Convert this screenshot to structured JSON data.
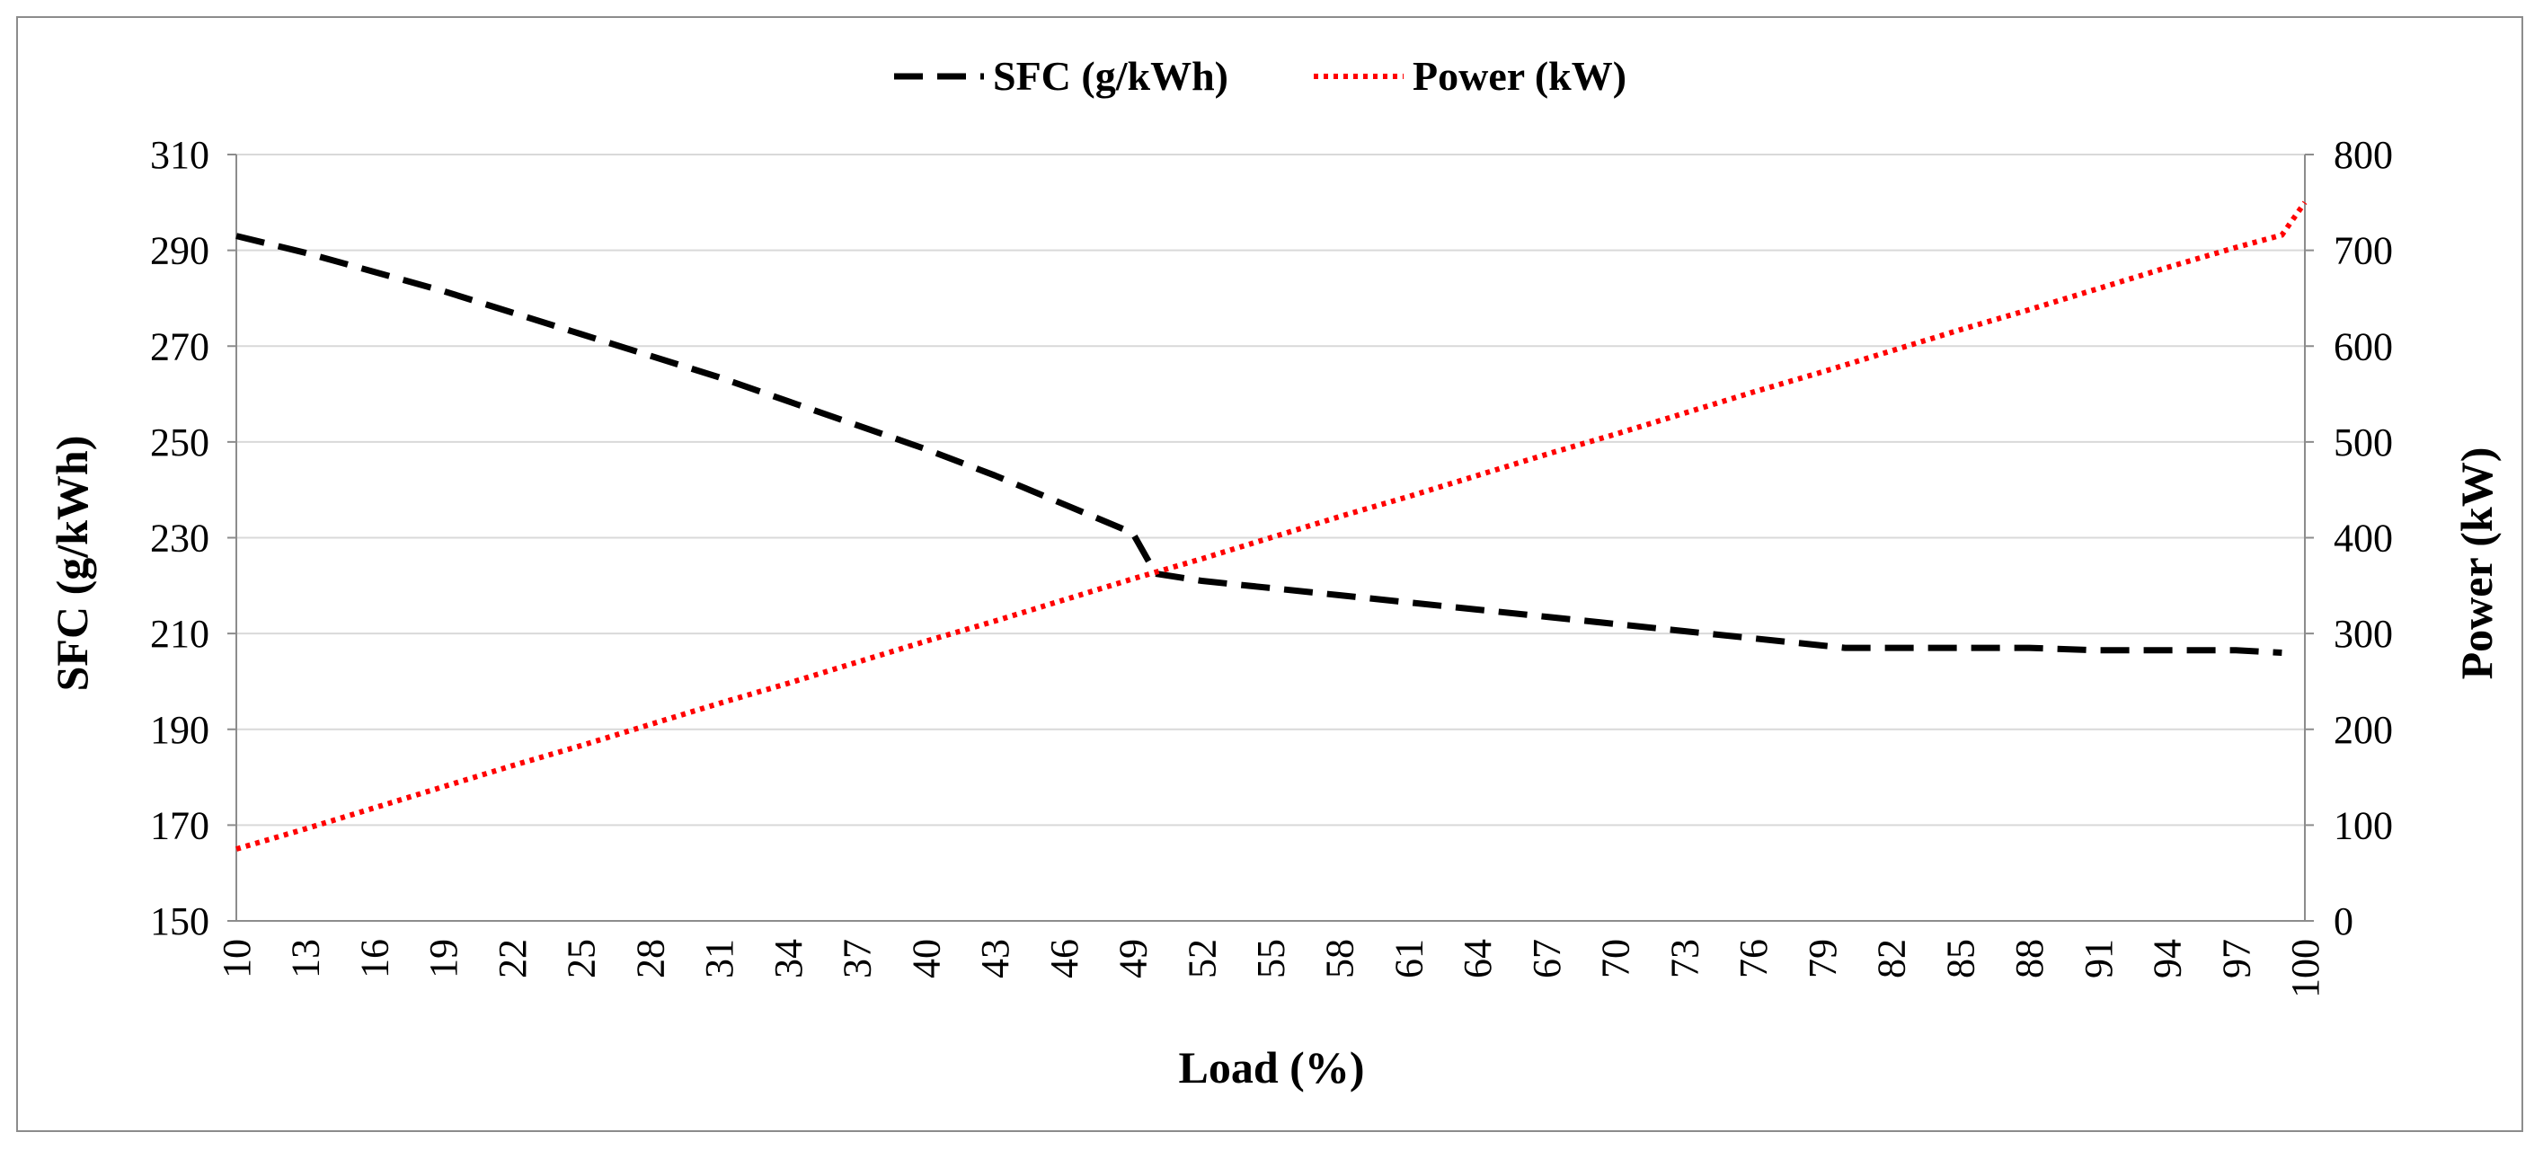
{
  "chart_data": {
    "type": "line",
    "title": "",
    "xlabel": "Load (%)",
    "ylabel": "SFC (g/kWh)",
    "y2label": "Power (kW)",
    "legend_position": "top-center",
    "grid": true,
    "x": [
      10,
      13,
      16,
      19,
      22,
      25,
      28,
      31,
      34,
      37,
      40,
      43,
      46,
      49,
      52,
      55,
      58,
      61,
      64,
      67,
      70,
      73,
      76,
      79,
      82,
      85,
      88,
      91,
      94,
      97,
      100
    ],
    "x_tick_labels": [
      "10",
      "13",
      "16",
      "19",
      "22",
      "25",
      "28",
      "31",
      "34",
      "37",
      "40",
      "43",
      "46",
      "49",
      "52",
      "55",
      "58",
      "61",
      "64",
      "67",
      "70",
      "73",
      "76",
      "79",
      "82",
      "85",
      "88",
      "91",
      "94",
      "97",
      "100"
    ],
    "ylim": [
      150,
      310
    ],
    "y_ticks": [
      150,
      170,
      190,
      210,
      230,
      250,
      270,
      290,
      310
    ],
    "y2lim": [
      0,
      800
    ],
    "y2_ticks": [
      0,
      100,
      200,
      300,
      400,
      500,
      600,
      700,
      800
    ],
    "series": [
      {
        "name": "SFC (g/kWh)",
        "axis": "left",
        "color": "#000000",
        "style": "dashed",
        "x": [
          10,
          13,
          16,
          19,
          22,
          25,
          28,
          31,
          34,
          37,
          40,
          43,
          46,
          49,
          50,
          52,
          55,
          58,
          61,
          64,
          67,
          70,
          73,
          76,
          79,
          80,
          82,
          85,
          88,
          91,
          94,
          97,
          99
        ],
        "values": [
          293,
          289.5,
          285.5,
          281.5,
          277,
          272.5,
          268,
          263.5,
          258.5,
          253.5,
          248.5,
          243,
          237,
          231,
          222.5,
          221,
          219.5,
          218,
          216.5,
          215,
          213.5,
          212,
          210.5,
          209,
          207.5,
          207,
          207,
          207,
          207,
          206.5,
          206.5,
          206.5,
          206
        ]
      },
      {
        "name": "Power (kW)",
        "axis": "right",
        "color": "#ff0000",
        "style": "dotted",
        "x": [
          10,
          13,
          16,
          19,
          22,
          25,
          28,
          31,
          34,
          37,
          40,
          43,
          46,
          49,
          52,
          55,
          58,
          61,
          64,
          67,
          70,
          73,
          76,
          79,
          82,
          85,
          88,
          91,
          94,
          97,
          99,
          100
        ],
        "values": [
          75,
          96,
          118,
          140,
          162,
          183,
          205,
          227,
          248,
          270,
          292,
          313,
          335,
          357,
          378,
          400,
          422,
          443,
          465,
          487,
          508,
          530,
          552,
          573,
          595,
          617,
          638,
          660,
          682,
          703,
          716,
          750
        ]
      }
    ]
  }
}
